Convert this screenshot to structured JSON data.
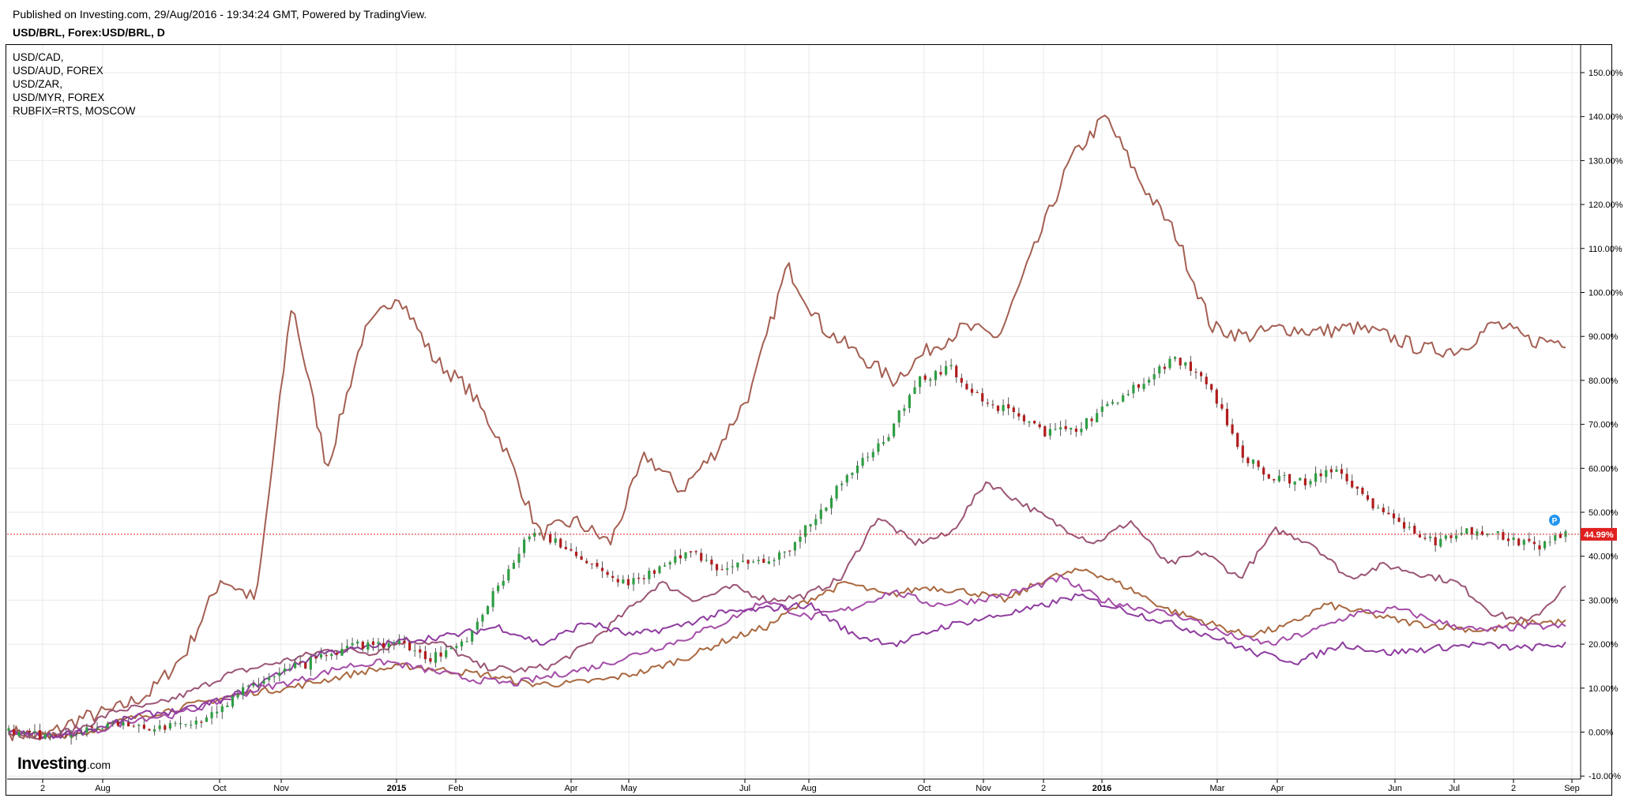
{
  "header": {
    "published": "Published on Investing.com, 29/Aug/2016 - 19:34:24 GMT, Powered by TradingView.",
    "symbol": "USD/BRL, Forex:USD/BRL, D"
  },
  "legend": [
    "USD/CAD,",
    "USD/AUD, FOREX",
    "USD/ZAR,",
    "USD/MYR, FOREX",
    "RUBFIX=RTS, MOSCOW"
  ],
  "logo": {
    "big": "Investing",
    "small": ".com"
  },
  "price_badge": "44.99%",
  "marker_label": "P",
  "colors": {
    "up": "#2f9e44",
    "down": "#b11d1d",
    "wick": "#555555",
    "rub": "#a45f52",
    "zar": "#9b5576",
    "cad": "#a9683f",
    "aud": "#a44ca8",
    "myr": "#8e3c9f",
    "grid": "#e8e8e8",
    "price_line": "#e02020",
    "marker": "#2196f3"
  },
  "chart_data": {
    "type": "line",
    "title": "USD/BRL, Forex:USD/BRL, D",
    "x_ticks": [
      "2",
      "Aug",
      "Oct",
      "Nov",
      "2015",
      "Feb",
      "Apr",
      "May",
      "Jul",
      "Aug",
      "Oct",
      "Nov",
      "2",
      "2016",
      "Mar",
      "Apr",
      "Jun",
      "Jul",
      "2",
      "Sep"
    ],
    "y_ticks": [
      "-10.00%",
      "0.00%",
      "10.00%",
      "20.00%",
      "30.00%",
      "40.00%",
      "50.00%",
      "60.00%",
      "70.00%",
      "80.00%",
      "90.00%",
      "100.00%",
      "110.00%",
      "120.00%",
      "130.00%",
      "140.00%",
      "150.00%"
    ],
    "ylim": [
      -10,
      155
    ],
    "last_value": 44.99,
    "main_series": {
      "name": "USD/BRL",
      "style": "candlestick",
      "values": [
        0,
        -1,
        0,
        2,
        1,
        1,
        3,
        8,
        13,
        15,
        18,
        20,
        20,
        17,
        20,
        32,
        45,
        43,
        38,
        34,
        37,
        41,
        37,
        39,
        41,
        50,
        60,
        66,
        80,
        83,
        75,
        73,
        68,
        69,
        75,
        80,
        85,
        79,
        63,
        58,
        57,
        60,
        52,
        47,
        43,
        46,
        45,
        42,
        45
      ]
    },
    "series": [
      {
        "name": "RUBFIX=RTS, MOSCOW",
        "values": [
          0,
          -1,
          3,
          5,
          9,
          18,
          35,
          30,
          98,
          60,
          90,
          100,
          85,
          78,
          65,
          45,
          48,
          43,
          63,
          55,
          64,
          78,
          106,
          92,
          86,
          80,
          87,
          92,
          90,
          110,
          130,
          140,
          125,
          113,
          92,
          90,
          92,
          91,
          92,
          90,
          87,
          87,
          93,
          89,
          89
        ]
      },
      {
        "name": "USD/ZAR,",
        "values": [
          0,
          -1,
          1,
          5,
          6,
          9,
          13,
          15,
          17,
          19,
          18,
          21,
          20,
          15,
          14,
          15,
          20,
          27,
          34,
          30,
          33,
          30,
          31,
          35,
          49,
          43,
          45,
          57,
          52,
          47,
          43,
          48,
          38,
          41,
          35,
          46,
          43,
          35,
          38,
          36,
          34,
          27,
          25,
          33
        ]
      },
      {
        "name": "USD/CAD,",
        "values": [
          0,
          -1,
          0,
          3,
          5,
          7,
          9,
          10,
          12,
          14,
          15,
          14,
          13,
          11,
          11,
          12,
          14,
          17,
          21,
          24,
          30,
          34,
          31,
          33,
          32,
          30,
          35,
          37,
          33,
          28,
          25,
          22,
          24,
          29,
          27,
          25,
          24,
          23,
          25,
          25
        ]
      },
      {
        "name": "USD/AUD, FOREX",
        "values": [
          0,
          -1,
          0,
          3,
          4,
          7,
          10,
          12,
          15,
          16,
          14,
          12,
          11,
          13,
          15,
          18,
          21,
          25,
          30,
          26,
          28,
          32,
          29,
          30,
          32,
          35,
          30,
          28,
          26,
          22,
          20,
          23,
          27,
          28,
          25,
          23,
          24,
          24
        ]
      },
      {
        "name": "USD/MYR, FOREX",
        "values": [
          0,
          -1,
          1,
          4,
          5,
          8,
          13,
          18,
          19,
          21,
          22,
          24,
          20,
          25,
          22,
          24,
          27,
          28,
          29,
          22,
          20,
          24,
          26,
          28,
          31,
          28,
          25,
          22,
          18,
          16,
          20,
          18,
          19,
          20,
          19,
          20
        ]
      }
    ]
  }
}
